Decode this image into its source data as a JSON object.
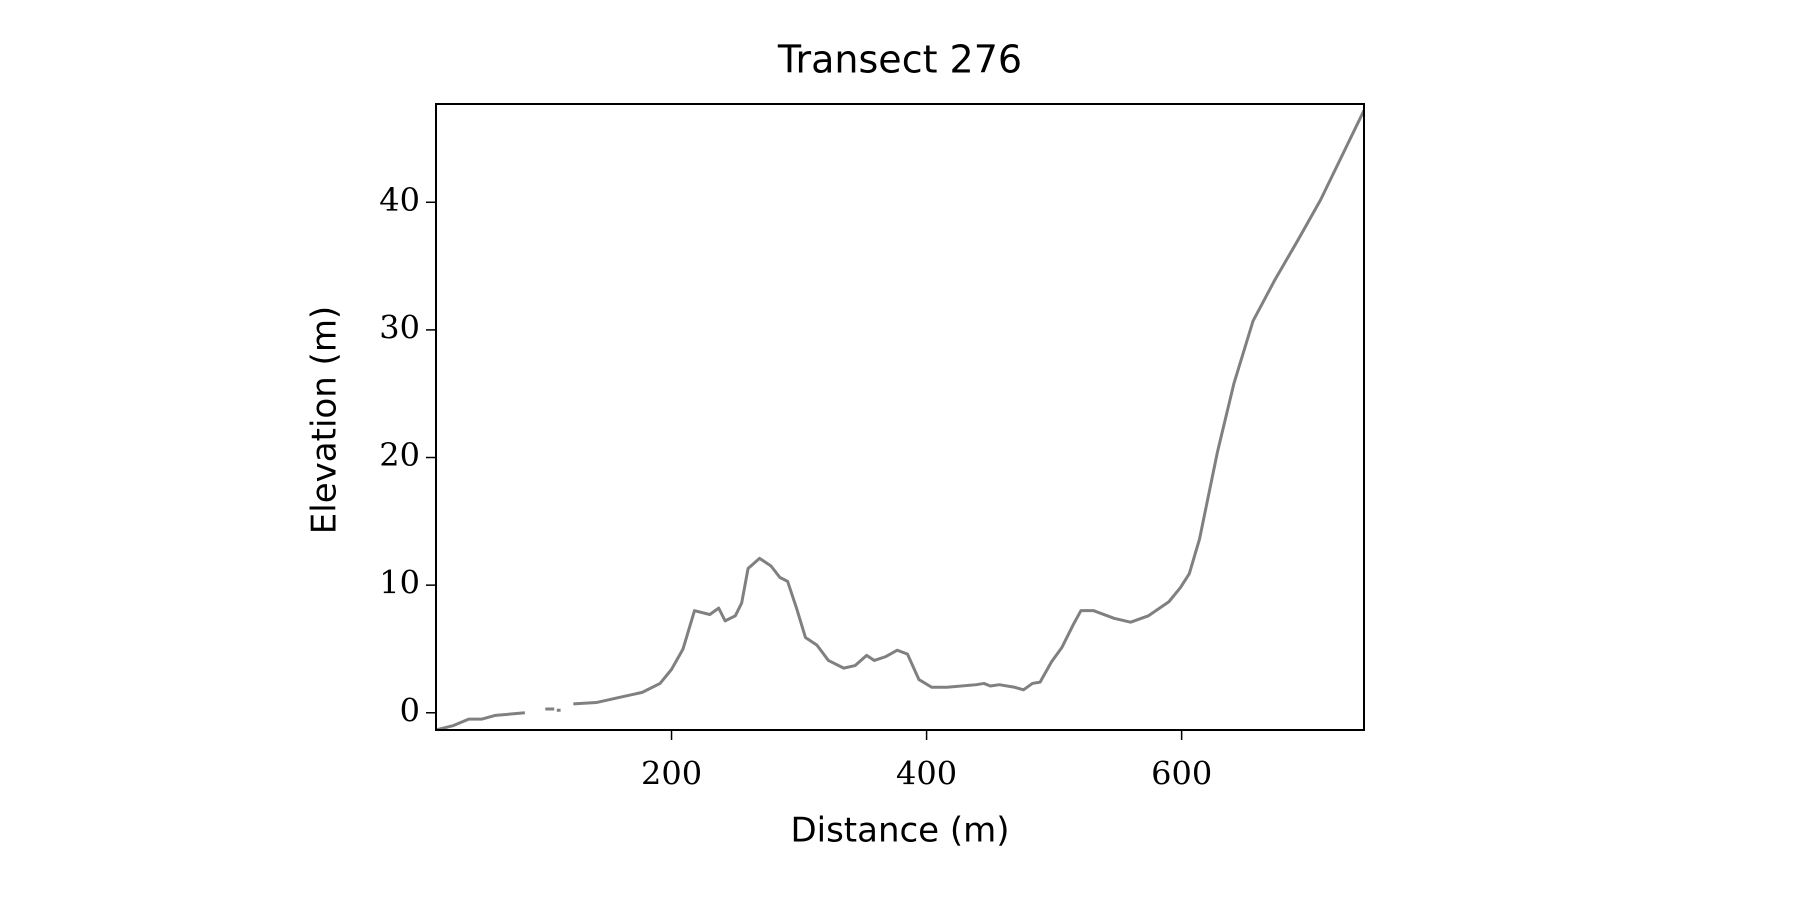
{
  "chart_data": {
    "type": "line",
    "title": "Transect 276",
    "x_label": "Distance (m)",
    "y_label": "Elevation (m)",
    "x": [
      15,
      29,
      41,
      51,
      62,
      74,
      85,
      92,
      101,
      108,
      110,
      110,
      113,
      118,
      123,
      141,
      159,
      177,
      191,
      200,
      209,
      218,
      230,
      237,
      242,
      250,
      255,
      260,
      269,
      278,
      285,
      291,
      298,
      305,
      314,
      323,
      335,
      344,
      353,
      359,
      368,
      377,
      385,
      394,
      404,
      416,
      439,
      445,
      450,
      457,
      469,
      476,
      483,
      489,
      498,
      506,
      515,
      521,
      531,
      547,
      560,
      574,
      590,
      599,
      606,
      614,
      628,
      641,
      656,
      673,
      691,
      709,
      743
    ],
    "values": [
      -1.35,
      -1.0,
      -0.5,
      -0.5,
      -0.2,
      -0.1,
      0.0,
      null,
      0.3,
      0.3,
      null,
      0.2,
      0.2,
      null,
      0.7,
      0.8,
      1.2,
      1.6,
      2.3,
      3.4,
      5.0,
      8.0,
      7.7,
      8.2,
      7.2,
      7.6,
      8.6,
      11.3,
      12.1,
      11.5,
      10.6,
      10.3,
      8.2,
      5.9,
      5.3,
      4.1,
      3.5,
      3.7,
      4.5,
      4.1,
      4.4,
      4.9,
      4.6,
      2.6,
      2.0,
      2.0,
      2.2,
      2.3,
      2.1,
      2.2,
      2.0,
      1.8,
      2.3,
      2.4,
      4.0,
      5.1,
      6.9,
      8.0,
      8.0,
      7.4,
      7.1,
      7.6,
      8.7,
      9.8,
      10.9,
      13.6,
      20.4,
      25.8,
      30.7,
      33.9,
      37.0,
      40.2,
      47.2
    ],
    "color": "#808080",
    "xlim": [
      15.3,
      743
    ],
    "ylim": [
      -1.35,
      47.7
    ],
    "xticks": [
      200,
      400,
      600
    ],
    "yticks": [
      0,
      10,
      20,
      30,
      40
    ],
    "grid": false
  }
}
